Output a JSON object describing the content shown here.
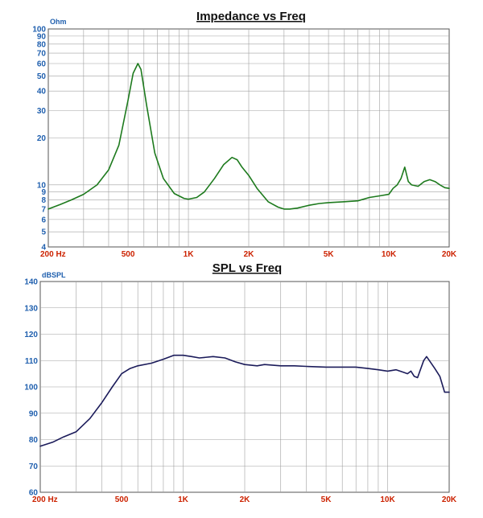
{
  "colors": {
    "tick_label": "#cc2200",
    "y_tick_label": "#1f5fae",
    "grid": "#a0a0a0",
    "impedance_curve": "#1d7a1d",
    "spl_curve": "#1b1b5a",
    "title": "#111111"
  },
  "chart_data": [
    {
      "type": "line",
      "title": "Impedance vs Freq",
      "ylabel": "Ohm",
      "xlabel": "",
      "x_scale": "log",
      "y_scale": "log",
      "xlim": [
        200,
        20000
      ],
      "ylim": [
        4,
        100
      ],
      "grid": true,
      "x_ticks": [
        {
          "value": 200,
          "label": "200  Hz"
        },
        {
          "value": 500,
          "label": "500"
        },
        {
          "value": 1000,
          "label": "1K"
        },
        {
          "value": 2000,
          "label": "2K"
        },
        {
          "value": 5000,
          "label": "5K"
        },
        {
          "value": 10000,
          "label": "10K"
        },
        {
          "value": 20000,
          "label": "20K"
        }
      ],
      "y_ticks": [
        {
          "value": 4,
          "label": "4"
        },
        {
          "value": 5,
          "label": "5"
        },
        {
          "value": 6,
          "label": "6"
        },
        {
          "value": 7,
          "label": "7"
        },
        {
          "value": 8,
          "label": "8"
        },
        {
          "value": 9,
          "label": "9"
        },
        {
          "value": 10,
          "label": "10"
        },
        {
          "value": 20,
          "label": "20"
        },
        {
          "value": 30,
          "label": "30"
        },
        {
          "value": 40,
          "label": "40"
        },
        {
          "value": 50,
          "label": "50"
        },
        {
          "value": 60,
          "label": "60"
        },
        {
          "value": 70,
          "label": "70"
        },
        {
          "value": 80,
          "label": "80"
        },
        {
          "value": 90,
          "label": "90"
        },
        {
          "value": 100,
          "label": "100"
        }
      ],
      "series": [
        {
          "x": [
            200,
            230,
            260,
            300,
            350,
            400,
            450,
            500,
            530,
            560,
            580,
            620,
            680,
            750,
            850,
            950,
            1000,
            1100,
            1200,
            1350,
            1500,
            1650,
            1750,
            1850,
            2000,
            2200,
            2500,
            2800,
            3000,
            3200,
            3500,
            4000,
            4500,
            5000,
            6000,
            7000,
            8000,
            9000,
            10000,
            10500,
            11000,
            11500,
            12000,
            12500,
            13000,
            14000,
            15000,
            16000,
            17000,
            18000,
            19000,
            20000
          ],
          "y": [
            7.0,
            7.5,
            8.0,
            8.7,
            10.0,
            12.5,
            18.0,
            35.0,
            52.0,
            60.0,
            55.0,
            32.0,
            16.0,
            11.0,
            8.8,
            8.2,
            8.1,
            8.3,
            9.0,
            11.0,
            13.5,
            15.0,
            14.5,
            13.0,
            11.5,
            9.5,
            7.8,
            7.2,
            7.0,
            7.0,
            7.1,
            7.4,
            7.6,
            7.7,
            7.8,
            7.9,
            8.3,
            8.5,
            8.7,
            9.5,
            10.0,
            11.0,
            13.0,
            10.5,
            10.0,
            9.8,
            10.5,
            10.8,
            10.5,
            10.0,
            9.6,
            9.5
          ]
        }
      ]
    },
    {
      "type": "line",
      "title": "SPL vs Freq",
      "ylabel": "dBSPL",
      "xlabel": "",
      "x_scale": "log",
      "y_scale": "linear",
      "xlim": [
        200,
        20000
      ],
      "ylim": [
        60,
        140
      ],
      "grid": true,
      "x_ticks": [
        {
          "value": 200,
          "label": "200  Hz"
        },
        {
          "value": 500,
          "label": "500"
        },
        {
          "value": 1000,
          "label": "1K"
        },
        {
          "value": 2000,
          "label": "2K"
        },
        {
          "value": 5000,
          "label": "5K"
        },
        {
          "value": 10000,
          "label": "10K"
        },
        {
          "value": 20000,
          "label": "20K"
        }
      ],
      "y_ticks": [
        {
          "value": 60,
          "label": "60"
        },
        {
          "value": 70,
          "label": "70"
        },
        {
          "value": 80,
          "label": "80"
        },
        {
          "value": 90,
          "label": "90"
        },
        {
          "value": 100,
          "label": "100"
        },
        {
          "value": 110,
          "label": "110"
        },
        {
          "value": 120,
          "label": "120"
        },
        {
          "value": 130,
          "label": "130"
        },
        {
          "value": 140,
          "label": "140"
        }
      ],
      "series": [
        {
          "x": [
            200,
            230,
            260,
            300,
            350,
            400,
            450,
            500,
            550,
            600,
            700,
            800,
            900,
            1000,
            1100,
            1200,
            1400,
            1600,
            1800,
            2000,
            2300,
            2500,
            3000,
            3500,
            4000,
            5000,
            6000,
            7000,
            8000,
            9000,
            10000,
            11000,
            12000,
            12500,
            13000,
            13500,
            14000,
            15000,
            15500,
            16000,
            17000,
            18000,
            19000,
            20000
          ],
          "y": [
            77.5,
            79.0,
            81.0,
            83.0,
            88.0,
            94.0,
            100.0,
            105.0,
            107.0,
            108.0,
            109.0,
            110.5,
            112.0,
            112.0,
            111.5,
            111.0,
            111.5,
            111.0,
            109.5,
            108.5,
            108.0,
            108.5,
            108.0,
            108.0,
            107.8,
            107.5,
            107.5,
            107.5,
            107.0,
            106.5,
            106.0,
            106.5,
            105.5,
            105.0,
            106.0,
            104.0,
            103.5,
            110.0,
            111.5,
            110.0,
            107.0,
            104.0,
            98.0,
            98.0
          ]
        }
      ]
    }
  ]
}
